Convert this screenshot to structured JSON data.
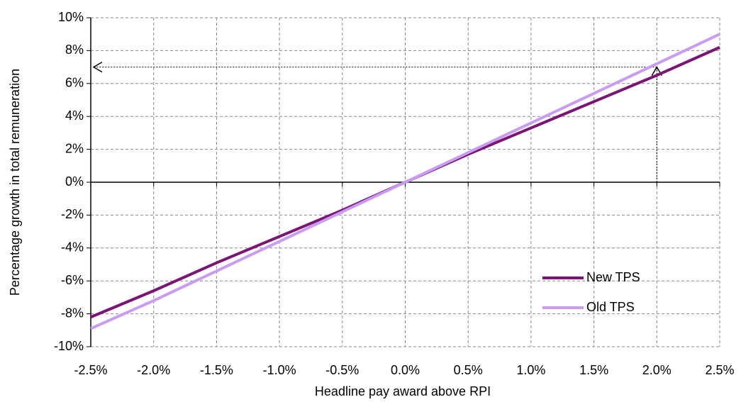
{
  "chart_data": {
    "type": "line",
    "x_label": "Headline pay award above RPI",
    "y_label": "Percentage growth in total remuneration",
    "x": [
      -2.5,
      -2.0,
      -1.5,
      -1.0,
      -0.5,
      0.0,
      0.5,
      1.0,
      1.5,
      2.0,
      2.5
    ],
    "series": [
      {
        "name": "New TPS",
        "color": "#7b1473",
        "values": [
          -8.2,
          -6.6,
          -4.9,
          -3.3,
          -1.7,
          0,
          1.7,
          3.3,
          4.9,
          6.5,
          8.2
        ]
      },
      {
        "name": "Old TPS",
        "color": "#c99cf2",
        "values": [
          -8.9,
          -7.2,
          -5.4,
          -3.6,
          -1.8,
          0,
          1.8,
          3.6,
          5.4,
          7.2,
          9.0
        ]
      }
    ],
    "xlim": [
      -2.5,
      2.5
    ],
    "xticks": [
      {
        "value": -2.5,
        "label": "-2.5%"
      },
      {
        "value": -2.0,
        "label": "-2.0%"
      },
      {
        "value": -1.5,
        "label": "-1.5%"
      },
      {
        "value": -1.0,
        "label": "-1.0%"
      },
      {
        "value": -0.5,
        "label": "-0.5%"
      },
      {
        "value": 0,
        "label": "0.0%"
      },
      {
        "value": 0.5,
        "label": "0.5%"
      },
      {
        "value": 1.0,
        "label": "1.0%"
      },
      {
        "value": 1.5,
        "label": "1.5%"
      },
      {
        "value": 2.0,
        "label": "2.0%"
      },
      {
        "value": 2.5,
        "label": "2.5%"
      }
    ],
    "ylim": [
      -10,
      10
    ],
    "yticks": [
      {
        "value": -10,
        "label": "-10%"
      },
      {
        "value": -8,
        "label": "-8%"
      },
      {
        "value": -6,
        "label": "-6%"
      },
      {
        "value": -4,
        "label": "-4%"
      },
      {
        "value": -2,
        "label": "-2%"
      },
      {
        "value": 0,
        "label": "0%"
      },
      {
        "value": 2,
        "label": "2%"
      },
      {
        "value": 4,
        "label": "4%"
      },
      {
        "value": 6,
        "label": "6%"
      },
      {
        "value": 8,
        "label": "8%"
      },
      {
        "value": 10,
        "label": "10%"
      }
    ],
    "reference": {
      "x": 2.0,
      "y": 7
    },
    "grid": true,
    "legend": "lower right"
  }
}
